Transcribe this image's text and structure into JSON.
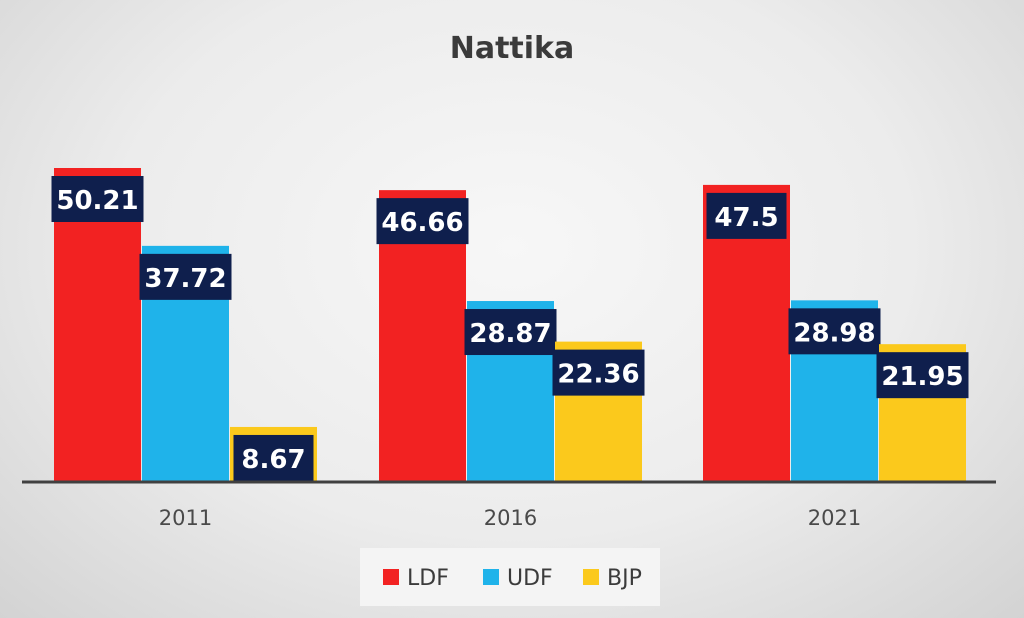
{
  "chart_data": {
    "type": "bar",
    "title": "Nattika",
    "categories": [
      "2011",
      "2016",
      "2021"
    ],
    "series": [
      {
        "name": "LDF",
        "values": [
          50.21,
          46.66,
          47.5
        ],
        "color": "#f22222"
      },
      {
        "name": "UDF",
        "values": [
          37.72,
          28.87,
          28.98
        ],
        "color": "#1fb3ea"
      },
      {
        "name": "BJP",
        "values": [
          8.67,
          22.36,
          21.95
        ],
        "color": "#fbc91c"
      }
    ],
    "data_labels": [
      [
        "50.21",
        "46.66",
        "47.5"
      ],
      [
        "37.72",
        "28.87",
        "28.98"
      ],
      [
        "8.67",
        "22.36",
        "21.95"
      ]
    ],
    "label_box_color": "#0f1f4d",
    "xlabel": "",
    "ylabel": "",
    "ylim": [
      0,
      50.21
    ],
    "grid": false,
    "legend": "bottom"
  }
}
